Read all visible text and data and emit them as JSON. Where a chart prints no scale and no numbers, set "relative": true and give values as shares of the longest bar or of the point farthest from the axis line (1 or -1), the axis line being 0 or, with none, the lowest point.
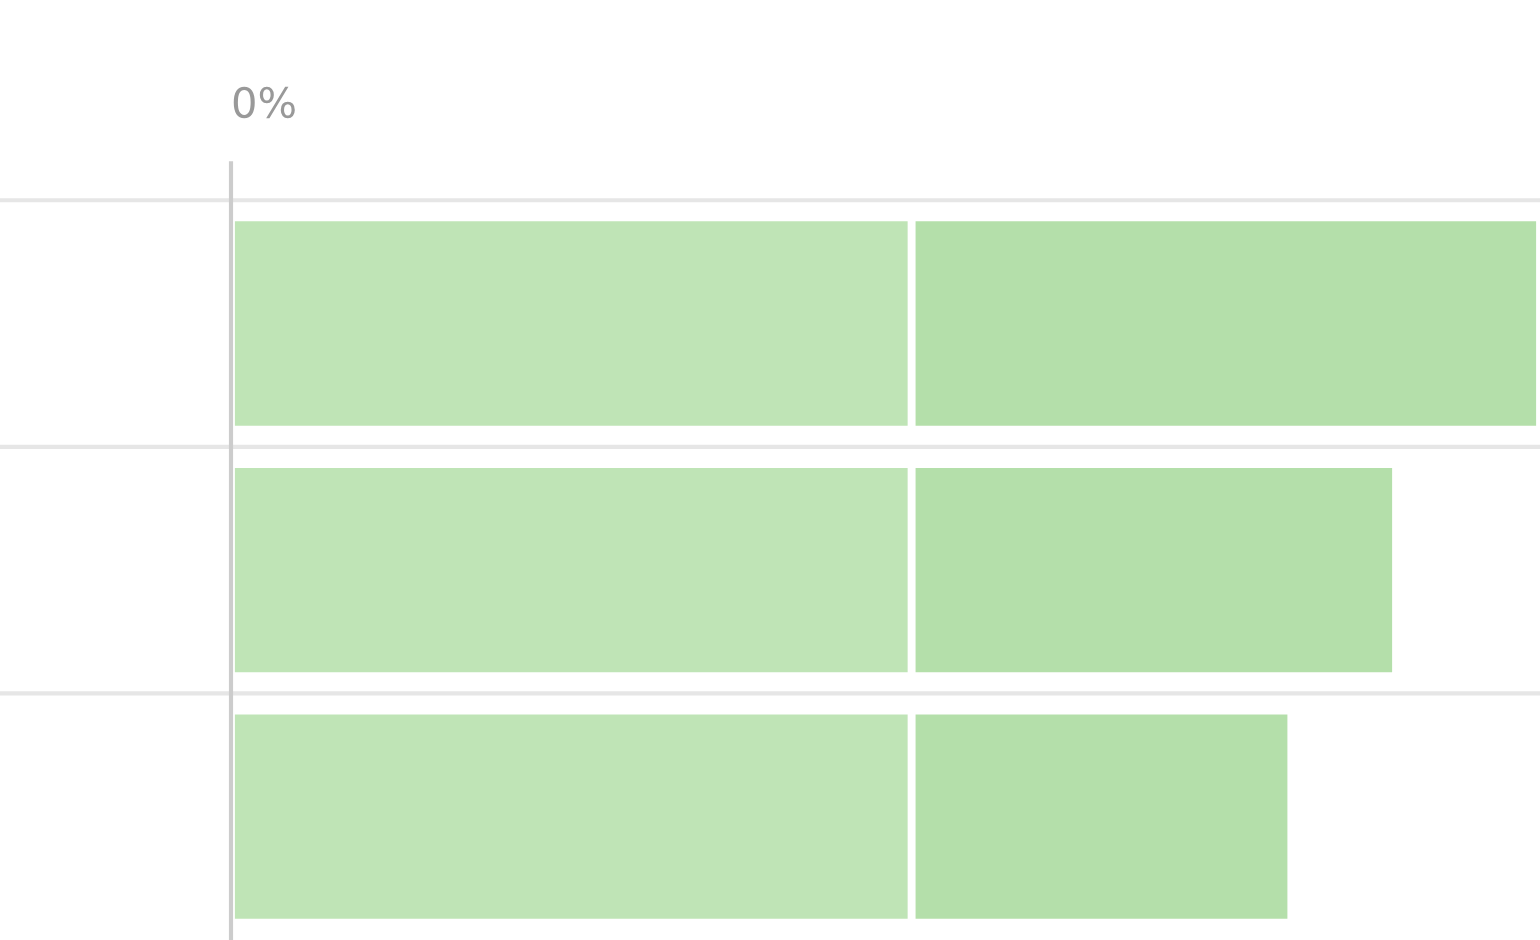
{
  "chart_data": {
    "type": "bar",
    "orientation": "horizontal",
    "stacked": true,
    "relative": true,
    "categories": [
      null,
      null,
      null
    ],
    "series": [
      {
        "color": "#bfe4b6",
        "values": [
          0.52,
          0.52,
          0.52
        ]
      },
      {
        "color": "#b4dfaa",
        "values": [
          0.48,
          0.37,
          0.29
        ]
      }
    ],
    "annotations": [
      "0%"
    ],
    "grid": "y",
    "legend": false
  }
}
